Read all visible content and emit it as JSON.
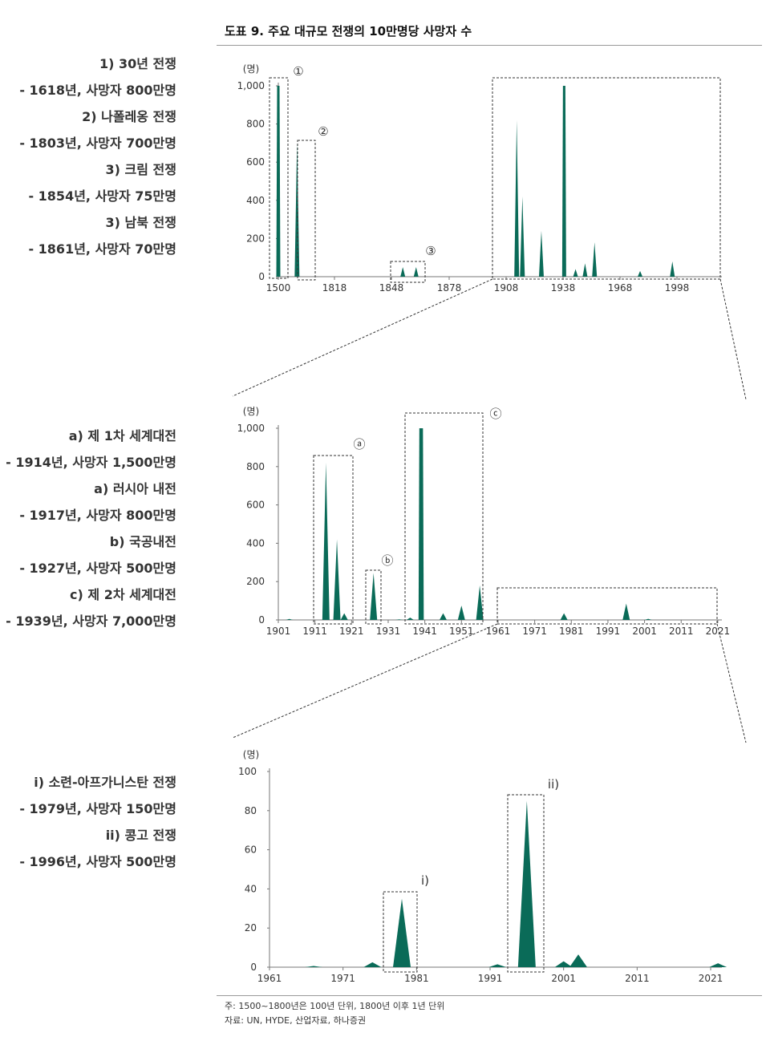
{
  "title": "도표 9. 주요 대규모 전쟁의 10만명당 사망자 수",
  "annotations_top": [
    "1) 30년 전쟁",
    "- 1618년, 사망자 800만명",
    "2) 나폴레옹 전쟁",
    "- 1803년, 사망자 700만명",
    "3) 크림 전쟁",
    "- 1854년, 사망자 75만명",
    "3) 남북 전쟁",
    "- 1861년, 사망자 70만명"
  ],
  "annotations_mid": [
    "a) 제 1차 세계대전",
    "- 1914년, 사망자 1,500만명",
    "a) 러시아 내전",
    "- 1917년, 사망자 800만명",
    "b) 국공내전",
    "- 1927년, 사망자 500만명",
    "c) 제 2차 세계대전",
    "- 1939년, 사망자 7,000만명"
  ],
  "annotations_bot": [
    "i) 소련-아프가니스탄 전쟁",
    "- 1979년, 사망자 150만명",
    "ii) 콩고 전쟁",
    "- 1996년, 사망자 500만명"
  ],
  "footer": {
    "note": "주: 1500~1800년은 100년 단위, 1800년 이후 1년 단위",
    "source": "자료: UN, HYDE, 산업자료, 하나증권"
  },
  "colors": {
    "fill": "#0a6b58",
    "axis": "#777777",
    "box": "#333333",
    "text": "#333333"
  },
  "chart_data": [
    {
      "type": "area",
      "ylabel": "(명)",
      "ylim": [
        0,
        1000
      ],
      "yticks": [
        "0",
        "200",
        "400",
        "600",
        "800",
        "1,000"
      ],
      "xticks": [
        "1500",
        "1818",
        "1848",
        "1878",
        "1908",
        "1938",
        "1968",
        "1998"
      ],
      "markers": [
        "①",
        "②",
        "③"
      ],
      "peaks": [
        {
          "x": 1500,
          "y": 1000
        },
        {
          "x": 1600,
          "y": 700
        },
        {
          "x": 1854,
          "y": 50
        },
        {
          "x": 1861,
          "y": 50
        },
        {
          "x": 1914,
          "y": 820
        },
        {
          "x": 1917,
          "y": 420
        },
        {
          "x": 1927,
          "y": 240
        },
        {
          "x": 1939,
          "y": 1000
        },
        {
          "x": 1945,
          "y": 40
        },
        {
          "x": 1950,
          "y": 70
        },
        {
          "x": 1955,
          "y": 180
        },
        {
          "x": 1979,
          "y": 30
        },
        {
          "x": 1996,
          "y": 80
        }
      ]
    },
    {
      "type": "area",
      "ylabel": "(명)",
      "ylim": [
        0,
        1000
      ],
      "yticks": [
        "0",
        "200",
        "400",
        "600",
        "800",
        "1,000"
      ],
      "xticks": [
        "1901",
        "1911",
        "1921",
        "1931",
        "1941",
        "1951",
        "1961",
        "1971",
        "1981",
        "1991",
        "2001",
        "2011",
        "2021"
      ],
      "markers": [
        "ⓐ",
        "ⓑ",
        "ⓒ"
      ],
      "peaks": [
        {
          "x": 1904,
          "y": 5
        },
        {
          "x": 1914,
          "y": 820
        },
        {
          "x": 1917,
          "y": 420
        },
        {
          "x": 1919,
          "y": 35
        },
        {
          "x": 1927,
          "y": 245
        },
        {
          "x": 1934,
          "y": 3
        },
        {
          "x": 1937,
          "y": 12
        },
        {
          "x": 1940,
          "y": 1000
        },
        {
          "x": 1946,
          "y": 35
        },
        {
          "x": 1951,
          "y": 75
        },
        {
          "x": 1956,
          "y": 180
        },
        {
          "x": 1979,
          "y": 35
        },
        {
          "x": 1996,
          "y": 85
        },
        {
          "x": 2002,
          "y": 6
        }
      ]
    },
    {
      "type": "area",
      "ylabel": "(명)",
      "ylim": [
        0,
        100
      ],
      "yticks": [
        "0",
        "20",
        "40",
        "60",
        "80",
        "100"
      ],
      "xticks": [
        "1961",
        "1971",
        "1981",
        "1991",
        "2001",
        "2011",
        "2021"
      ],
      "markers": [
        "i)",
        "ii)"
      ],
      "peaks": [
        {
          "x": 1967,
          "y": 0.6
        },
        {
          "x": 1975,
          "y": 2.5
        },
        {
          "x": 1979,
          "y": 35
        },
        {
          "x": 1992,
          "y": 1.5
        },
        {
          "x": 1996,
          "y": 85
        },
        {
          "x": 2001,
          "y": 3
        },
        {
          "x": 2003,
          "y": 6.5
        },
        {
          "x": 2022,
          "y": 2
        }
      ]
    }
  ]
}
